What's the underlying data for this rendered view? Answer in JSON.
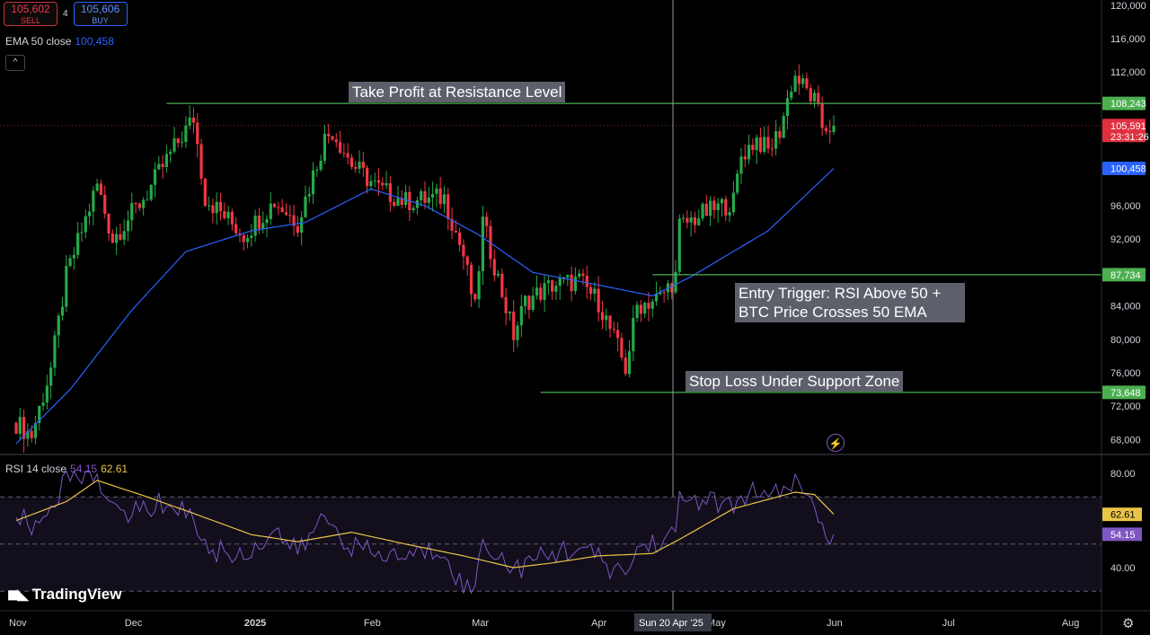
{
  "trade": {
    "sell_price": "105,602",
    "sell_label": "SELL",
    "spread": "4",
    "buy_price": "105,606",
    "buy_label": "BUY"
  },
  "ema_legend": {
    "label": "EMA 50 close",
    "value": "100,458"
  },
  "rsi_legend": {
    "label": "RSI 14 close",
    "rsi_value": "54.15",
    "ma_value": "62.61"
  },
  "annotations": {
    "take_profit": "Take Profit at Resistance Level",
    "entry_line1": "Entry Trigger: RSI Above 50 +",
    "entry_line2": "BTC Price Crosses 50 EMA",
    "stop_loss": "Stop Loss Under Support Zone"
  },
  "logo_text": "TradingView",
  "colors": {
    "up": "#22ab94",
    "up_bright": "#26a94a",
    "down": "#f23645",
    "ema": "#2962ff",
    "rsi": "#7e57c2",
    "rsi_ma": "#e8c547",
    "level": "#4caf50",
    "price_label": "#e03040"
  },
  "chart_data": [
    {
      "type": "candlestick",
      "title": "",
      "yticks": [
        "120,000",
        "116,000",
        "112,000",
        "96,000",
        "92,000",
        "84,000",
        "80,000",
        "76,000",
        "72,000",
        "68,000"
      ],
      "ylim": [
        66000,
        120400
      ],
      "xticks": [
        "Nov",
        "Dec",
        "2025",
        "Feb",
        "Mar",
        "Apr",
        "May",
        "Jun",
        "Jul",
        "Aug"
      ],
      "crosshair_label": "Sun 20 Apr '25",
      "price_labels": [
        {
          "text": "108,243",
          "value": 108243,
          "kind": "level"
        },
        {
          "text": "105,591",
          "sub": "23:31:26",
          "value": 105591,
          "kind": "last"
        },
        {
          "text": "100,458",
          "value": 100458,
          "kind": "ema"
        },
        {
          "text": "87,734",
          "value": 87734,
          "kind": "level"
        },
        {
          "text": "73,648",
          "value": 73648,
          "kind": "level"
        }
      ],
      "levels": [
        {
          "name": "take-profit",
          "value": 108243,
          "from": "Dec 10",
          "to": "end"
        },
        {
          "name": "entry",
          "value": 87734,
          "from": "Apr 15",
          "to": "end"
        },
        {
          "name": "stop-loss",
          "value": 73648,
          "from": "Mar 17",
          "to": "end"
        }
      ],
      "close_anchors": [
        [
          "Nov 1",
          70000
        ],
        [
          "Nov 5",
          68500
        ],
        [
          "Nov 10",
          76500
        ],
        [
          "Nov 14",
          87500
        ],
        [
          "Nov 22",
          98500
        ],
        [
          "Nov 26",
          92000
        ],
        [
          "Dec 5",
          97500
        ],
        [
          "Dec 10",
          101500
        ],
        [
          "Dec 17",
          106500
        ],
        [
          "Dec 20",
          97000
        ],
        [
          "Dec 30",
          92500
        ],
        [
          "Jan 7",
          96500
        ],
        [
          "Jan 13",
          94000
        ],
        [
          "Jan 20",
          104000
        ],
        [
          "Jan 22",
          105000
        ],
        [
          "Jan 27",
          101000
        ],
        [
          "Feb 3",
          98000
        ],
        [
          "Feb 10",
          96500
        ],
        [
          "Feb 20",
          97000
        ],
        [
          "Feb 25",
          90000
        ],
        [
          "Feb 28",
          83500
        ],
        [
          "Mar 2",
          94000
        ],
        [
          "Mar 10",
          80500
        ],
        [
          "Mar 13",
          84500
        ],
        [
          "Mar 20",
          86500
        ],
        [
          "Mar 27",
          87000
        ],
        [
          "Apr 1",
          84500
        ],
        [
          "Apr 6",
          79000
        ],
        [
          "Apr 8",
          76500
        ],
        [
          "Apr 11",
          84000
        ],
        [
          "Apr 17",
          85000
        ],
        [
          "Apr 21",
          87500
        ],
        [
          "Apr 22",
          93500
        ],
        [
          "Apr 28",
          95000
        ],
        [
          "May 6",
          96500
        ],
        [
          "May 8",
          102000
        ],
        [
          "May 12",
          104000
        ],
        [
          "May 15",
          102500
        ],
        [
          "May 18",
          105000
        ],
        [
          "May 21",
          110500
        ],
        [
          "May 22",
          111500
        ],
        [
          "May 27",
          108500
        ],
        [
          "May 29",
          105500
        ],
        [
          "Jun 1",
          105591
        ]
      ],
      "ema50": [
        [
          "Nov 1",
          67500
        ],
        [
          "Nov 15",
          74000
        ],
        [
          "Dec 1",
          83500
        ],
        [
          "Dec 15",
          90500
        ],
        [
          "Jan 1",
          93000
        ],
        [
          "Jan 15",
          94000
        ],
        [
          "Feb 1",
          98000
        ],
        [
          "Feb 15",
          96000
        ],
        [
          "Mar 1",
          92500
        ],
        [
          "Mar 15",
          88000
        ],
        [
          "Apr 1",
          86500
        ],
        [
          "Apr 15",
          85200
        ],
        [
          "Apr 25",
          87500
        ],
        [
          "May 15",
          93000
        ],
        [
          "Jun 1",
          100458
        ]
      ]
    },
    {
      "type": "line",
      "title": "RSI 14 close",
      "yticks": [
        "80.00",
        "40.00"
      ],
      "ylim": [
        24,
        82
      ],
      "bands": [
        70,
        50,
        30
      ],
      "series": [
        {
          "name": "RSI",
          "values": [
            [
              "Nov 1",
              64
            ],
            [
              "Nov 5",
              56
            ],
            [
              "Nov 10",
              66
            ],
            [
              "Nov 14",
              78
            ],
            [
              "Nov 22",
              81
            ],
            [
              "Nov 26",
              63
            ],
            [
              "Dec 5",
              65
            ],
            [
              "Dec 10",
              68
            ],
            [
              "Dec 17",
              62
            ],
            [
              "Dec 20",
              48
            ],
            [
              "Dec 30",
              45
            ],
            [
              "Jan 7",
              56
            ],
            [
              "Jan 13",
              46
            ],
            [
              "Jan 20",
              62
            ],
            [
              "Jan 27",
              49
            ],
            [
              "Feb 3",
              45
            ],
            [
              "Feb 10",
              45
            ],
            [
              "Feb 20",
              48
            ],
            [
              "Feb 25",
              31
            ],
            [
              "Feb 28",
              32
            ],
            [
              "Mar 2",
              52
            ],
            [
              "Mar 10",
              39
            ],
            [
              "Mar 20",
              46
            ],
            [
              "Mar 27",
              49
            ],
            [
              "Apr 6",
              38
            ],
            [
              "Apr 8",
              37
            ],
            [
              "Apr 11",
              48
            ],
            [
              "Apr 21",
              54
            ],
            [
              "Apr 22",
              69
            ],
            [
              "Apr 28",
              69
            ],
            [
              "May 6",
              65
            ],
            [
              "May 10",
              73
            ],
            [
              "May 15",
              68
            ],
            [
              "May 22",
              77
            ],
            [
              "May 25",
              68
            ],
            [
              "May 27",
              70
            ],
            [
              "May 29",
              54
            ],
            [
              "Jun 1",
              54.15
            ]
          ]
        },
        {
          "name": "RSI-based MA",
          "values": [
            [
              "Nov 1",
              60
            ],
            [
              "Nov 14",
              68
            ],
            [
              "Nov 22",
              77
            ],
            [
              "Dec 5",
              70
            ],
            [
              "Dec 17",
              63
            ],
            [
              "Jan 1",
              54
            ],
            [
              "Jan 13",
              51
            ],
            [
              "Jan 27",
              55
            ],
            [
              "Feb 10",
              50
            ],
            [
              "Feb 25",
              45
            ],
            [
              "Mar 10",
              40
            ],
            [
              "Mar 20",
              42
            ],
            [
              "Apr 1",
              45
            ],
            [
              "Apr 15",
              46
            ],
            [
              "Apr 22",
              52
            ],
            [
              "May 6",
              65
            ],
            [
              "May 22",
              72
            ],
            [
              "May 27",
              71
            ],
            [
              "Jun 1",
              62.61
            ]
          ]
        }
      ],
      "value_labels": [
        {
          "text": "62.61",
          "value": 62.61,
          "kind": "ma"
        },
        {
          "text": "54.15",
          "value": 54.15,
          "kind": "rsi"
        }
      ]
    }
  ]
}
